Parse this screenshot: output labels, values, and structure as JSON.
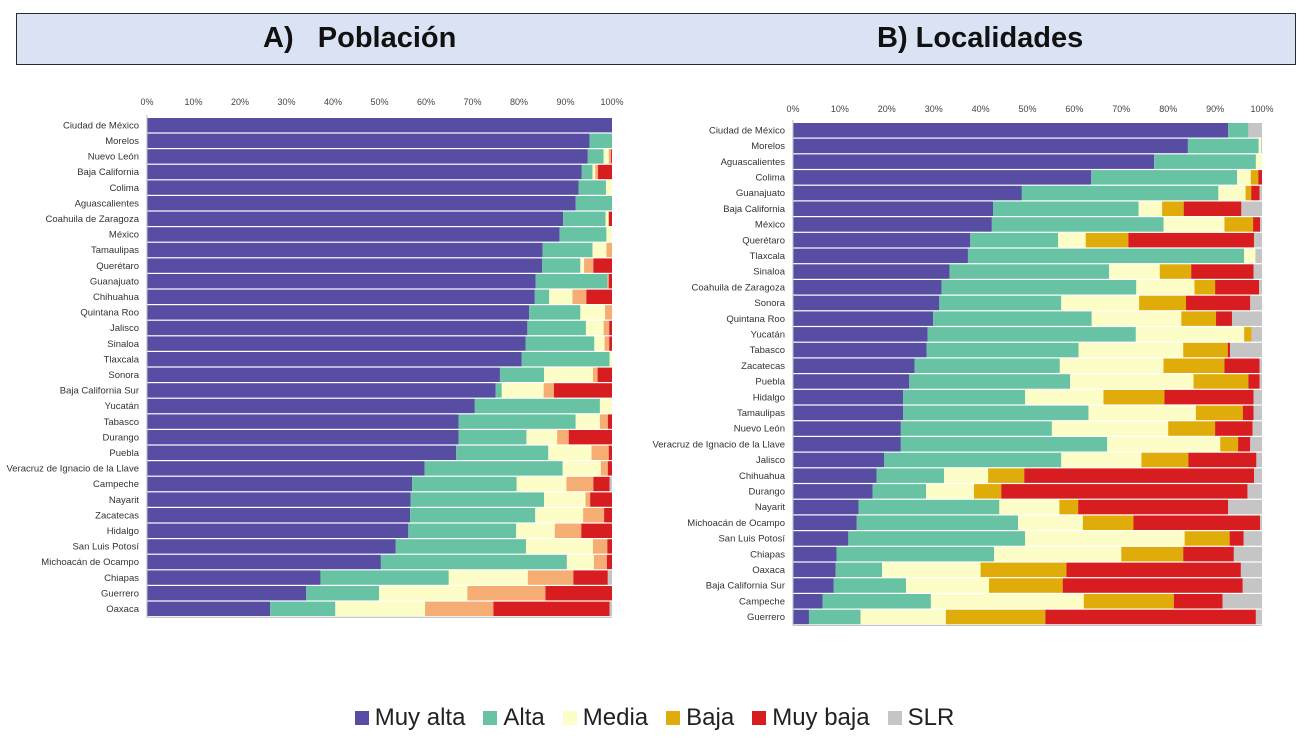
{
  "panels": {
    "a": {
      "title": "A)   Población"
    },
    "b": {
      "title": "B) Localidades"
    }
  },
  "colors": {
    "muy_alta": "#574ea3",
    "alta": "#67c3a3",
    "media": "#fdfdc8",
    "baja": "#e0ac0a",
    "muy_baja": "#d81d20",
    "slr": "#c5c5c5",
    "baja_a": "#f5ad73"
  },
  "legend": [
    {
      "key": "muy_alta",
      "label": "Muy alta"
    },
    {
      "key": "alta",
      "label": "Alta"
    },
    {
      "key": "media",
      "label": "Media"
    },
    {
      "key": "baja",
      "label": "Baja"
    },
    {
      "key": "muy_baja",
      "label": "Muy baja"
    },
    {
      "key": "slr",
      "label": "SLR"
    }
  ],
  "chart_data": [
    {
      "id": "a",
      "type": "bar",
      "orientation": "horizontal",
      "stacked": true,
      "title": "A)   Población",
      "xlim": [
        0,
        100
      ],
      "ticks": [
        "0%",
        "10%",
        "20%",
        "30%",
        "40%",
        "50%",
        "60%",
        "70%",
        "80%",
        "90%",
        "100%"
      ],
      "categories": [
        "Ciudad de México",
        "Morelos",
        "Nuevo León",
        "Baja California",
        "Colima",
        "Aguascalientes",
        "Coahuila de Zaragoza",
        "México",
        "Tamaulipas",
        "Querétaro",
        "Guanajuato",
        "Chihuahua",
        "Quintana Roo",
        "Jalisco",
        "Sinaloa",
        "Tlaxcala",
        "Sonora",
        "Baja California Sur",
        "Yucatán",
        "Tabasco",
        "Durango",
        "Puebla",
        "Veracruz de Ignacio de la Llave",
        "Campeche",
        "Nayarit",
        "Zacatecas",
        "Hidalgo",
        "San Luis Potosí",
        "Michoacán de Ocampo",
        "Chiapas",
        "Guerrero",
        "Oaxaca"
      ],
      "series": [
        {
          "name": "Muy alta",
          "color_key": "muy_alta",
          "values": [
            100.0,
            95.2,
            94.8,
            93.5,
            92.8,
            92.2,
            89.5,
            88.7,
            85.1,
            85.0,
            83.6,
            83.4,
            82.2,
            81.8,
            81.4,
            80.6,
            75.9,
            75.0,
            70.5,
            67.0,
            67.0,
            66.5,
            59.7,
            57.0,
            56.7,
            56.6,
            56.2,
            53.5,
            50.3,
            37.3,
            34.2,
            26.5
          ]
        },
        {
          "name": "Alta",
          "color_key": "alta",
          "values": [
            0.0,
            4.8,
            3.4,
            2.3,
            5.9,
            7.8,
            9.1,
            10.1,
            10.7,
            8.2,
            15.4,
            3.1,
            11.0,
            12.6,
            14.8,
            18.9,
            9.5,
            1.3,
            26.9,
            25.2,
            14.6,
            19.8,
            29.7,
            22.5,
            28.7,
            26.9,
            23.2,
            28.0,
            40.0,
            27.6,
            15.7,
            14.0
          ]
        },
        {
          "name": "Media",
          "color_key": "media",
          "values": [
            0.0,
            0.0,
            1.1,
            0.6,
            1.3,
            0.0,
            0.7,
            1.2,
            3.0,
            0.8,
            0.0,
            5.0,
            5.3,
            3.8,
            2.2,
            0.5,
            10.5,
            9.0,
            2.6,
            5.2,
            6.6,
            9.3,
            8.2,
            10.7,
            8.9,
            10.3,
            8.3,
            14.4,
            5.8,
            17.0,
            19.0,
            19.3
          ]
        },
        {
          "name": "Baja",
          "color_key": "baja_a",
          "values": [
            0.0,
            0.0,
            0.5,
            0.6,
            0.0,
            0.0,
            0.0,
            0.0,
            1.2,
            2.0,
            0.3,
            3.0,
            1.5,
            1.2,
            1.0,
            0.0,
            1.0,
            2.2,
            0.0,
            1.7,
            2.5,
            3.7,
            1.5,
            5.8,
            1.0,
            4.5,
            5.7,
            3.1,
            2.8,
            9.8,
            16.8,
            14.7
          ]
        },
        {
          "name": "Muy baja",
          "color_key": "muy_baja",
          "values": [
            0.0,
            0.0,
            0.2,
            3.0,
            0.0,
            0.0,
            0.7,
            0.0,
            0.0,
            4.0,
            0.7,
            5.5,
            0.0,
            0.6,
            0.6,
            0.0,
            3.1,
            12.5,
            0.0,
            0.9,
            9.3,
            0.7,
            0.9,
            3.5,
            4.7,
            1.7,
            6.6,
            1.0,
            1.1,
            7.4,
            14.3,
            25.0
          ]
        },
        {
          "name": "SLR",
          "color_key": "slr",
          "values": [
            0.0,
            0.0,
            0.0,
            0.0,
            0.0,
            0.0,
            0.0,
            0.0,
            0.0,
            0.0,
            0.0,
            0.0,
            0.0,
            0.0,
            0.0,
            0.0,
            0.0,
            0.0,
            0.0,
            0.0,
            0.0,
            0.0,
            0.0,
            0.5,
            0.0,
            0.0,
            0.0,
            0.0,
            0.0,
            0.9,
            0.0,
            0.5
          ]
        }
      ]
    },
    {
      "id": "b",
      "type": "bar",
      "orientation": "horizontal",
      "stacked": true,
      "title": "B) Localidades",
      "xlim": [
        0,
        100
      ],
      "ticks": [
        "0%",
        "10%",
        "20%",
        "30%",
        "40%",
        "50%",
        "60%",
        "70%",
        "80%",
        "90%",
        "100%"
      ],
      "categories": [
        "Ciudad de México",
        "Morelos",
        "Aguascalientes",
        "Colima",
        "Guanajuato",
        "Baja California",
        "México",
        "Querétaro",
        "Tlaxcala",
        "Sinaloa",
        "Coahuila de Zaragoza",
        "Sonora",
        "Quintana Roo",
        "Yucatán",
        "Tabasco",
        "Zacatecas",
        "Puebla",
        "Hidalgo",
        "Tamaulipas",
        "Nuevo León",
        "Veracruz de Ignacio de la Llave",
        "Jalisco",
        "Chihuahua",
        "Durango",
        "Nayarit",
        "Michoacán de Ocampo",
        "San Luis Potosí",
        "Chiapas",
        "Oaxaca",
        "Baja California Sur",
        "Campeche",
        "Guerrero"
      ],
      "series": [
        {
          "name": "Muy alta",
          "color_key": "muy_alta",
          "values": [
            92.8,
            84.2,
            77.0,
            63.6,
            48.8,
            42.7,
            42.4,
            37.8,
            37.3,
            33.4,
            31.7,
            31.2,
            29.9,
            28.7,
            28.5,
            25.9,
            24.8,
            23.5,
            23.5,
            23.0,
            23.0,
            19.4,
            17.8,
            17.0,
            14.0,
            13.6,
            11.8,
            9.3,
            9.1,
            8.7,
            6.3,
            3.4
          ]
        },
        {
          "name": "Alta",
          "color_key": "alta",
          "values": [
            4.3,
            15.1,
            21.7,
            31.1,
            41.9,
            31.0,
            36.6,
            18.7,
            58.9,
            34.0,
            41.5,
            26.0,
            33.8,
            44.4,
            32.4,
            31.0,
            34.3,
            26.0,
            39.5,
            32.2,
            44.0,
            37.8,
            14.4,
            11.4,
            30.0,
            34.4,
            37.7,
            33.6,
            9.9,
            15.4,
            23.1,
            11.0
          ]
        },
        {
          "name": "Media",
          "color_key": "media",
          "values": [
            0.0,
            0.5,
            1.3,
            2.9,
            5.8,
            5.0,
            13.0,
            5.9,
            2.4,
            10.8,
            12.4,
            16.6,
            19.1,
            23.1,
            22.3,
            22.1,
            26.3,
            16.7,
            22.9,
            24.8,
            24.1,
            17.1,
            9.4,
            10.2,
            12.8,
            13.8,
            34.0,
            27.1,
            21.0,
            17.7,
            32.6,
            18.2
          ]
        },
        {
          "name": "Baja",
          "color_key": "baja",
          "values": [
            0.0,
            0.0,
            0.0,
            1.6,
            1.2,
            4.6,
            6.1,
            9.1,
            0.0,
            6.7,
            4.4,
            10.0,
            7.4,
            1.6,
            9.5,
            13.0,
            11.7,
            13.0,
            10.0,
            10.0,
            3.8,
            10.0,
            7.7,
            5.8,
            4.0,
            10.8,
            9.6,
            13.2,
            18.3,
            15.7,
            19.2,
            21.2
          ]
        },
        {
          "name": "Muy baja",
          "color_key": "muy_baja",
          "values": [
            0.0,
            0.0,
            0.0,
            0.8,
            1.8,
            12.3,
            1.5,
            26.8,
            0.0,
            13.3,
            9.4,
            13.7,
            3.4,
            0.0,
            0.5,
            7.5,
            2.4,
            19.0,
            2.3,
            8.0,
            2.6,
            14.5,
            49.0,
            52.5,
            32.0,
            27.0,
            3.0,
            10.8,
            37.2,
            38.4,
            10.4,
            44.9
          ]
        },
        {
          "name": "SLR",
          "color_key": "slr",
          "values": [
            2.9,
            0.2,
            0.0,
            0.0,
            0.5,
            4.4,
            0.4,
            1.7,
            1.4,
            1.8,
            0.6,
            2.5,
            6.4,
            2.2,
            6.8,
            0.5,
            0.5,
            1.8,
            1.8,
            2.0,
            2.5,
            1.2,
            1.7,
            3.1,
            7.2,
            0.4,
            3.9,
            6.0,
            4.5,
            4.1,
            8.4,
            1.3
          ]
        }
      ]
    }
  ]
}
